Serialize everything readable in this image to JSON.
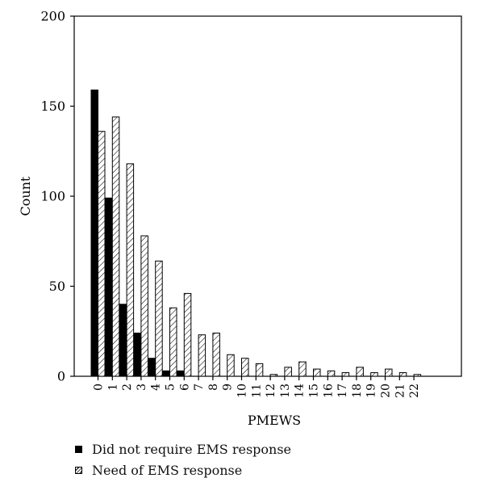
{
  "chart_data": {
    "type": "bar",
    "xlabel": "PMEWS",
    "ylabel": "Count",
    "categories": [
      "0",
      "1",
      "2",
      "3",
      "4",
      "5",
      "6",
      "7",
      "8",
      "9",
      "10",
      "11",
      "12",
      "13",
      "14",
      "15",
      "16",
      "17",
      "18",
      "19",
      "20",
      "21",
      "22"
    ],
    "series": [
      {
        "name": "Did not require EMS response",
        "values": [
          159,
          99,
          40,
          24,
          10,
          3,
          3,
          0,
          0,
          0,
          0,
          0,
          0,
          0,
          0,
          0,
          0,
          0,
          0,
          0,
          0,
          0,
          0
        ],
        "color": "#000000",
        "pattern": "solid"
      },
      {
        "name": "Need of EMS response",
        "values": [
          136,
          144,
          118,
          78,
          64,
          38,
          46,
          23,
          24,
          12,
          10,
          7,
          1,
          5,
          8,
          4,
          3,
          2,
          5,
          2,
          4,
          2,
          1
        ],
        "color": "#000000",
        "pattern": "hatched"
      }
    ],
    "ylim": [
      0,
      200
    ],
    "yticks": [
      0,
      50,
      100,
      150,
      200
    ],
    "grid": false,
    "legend_position": "bottom-left"
  }
}
